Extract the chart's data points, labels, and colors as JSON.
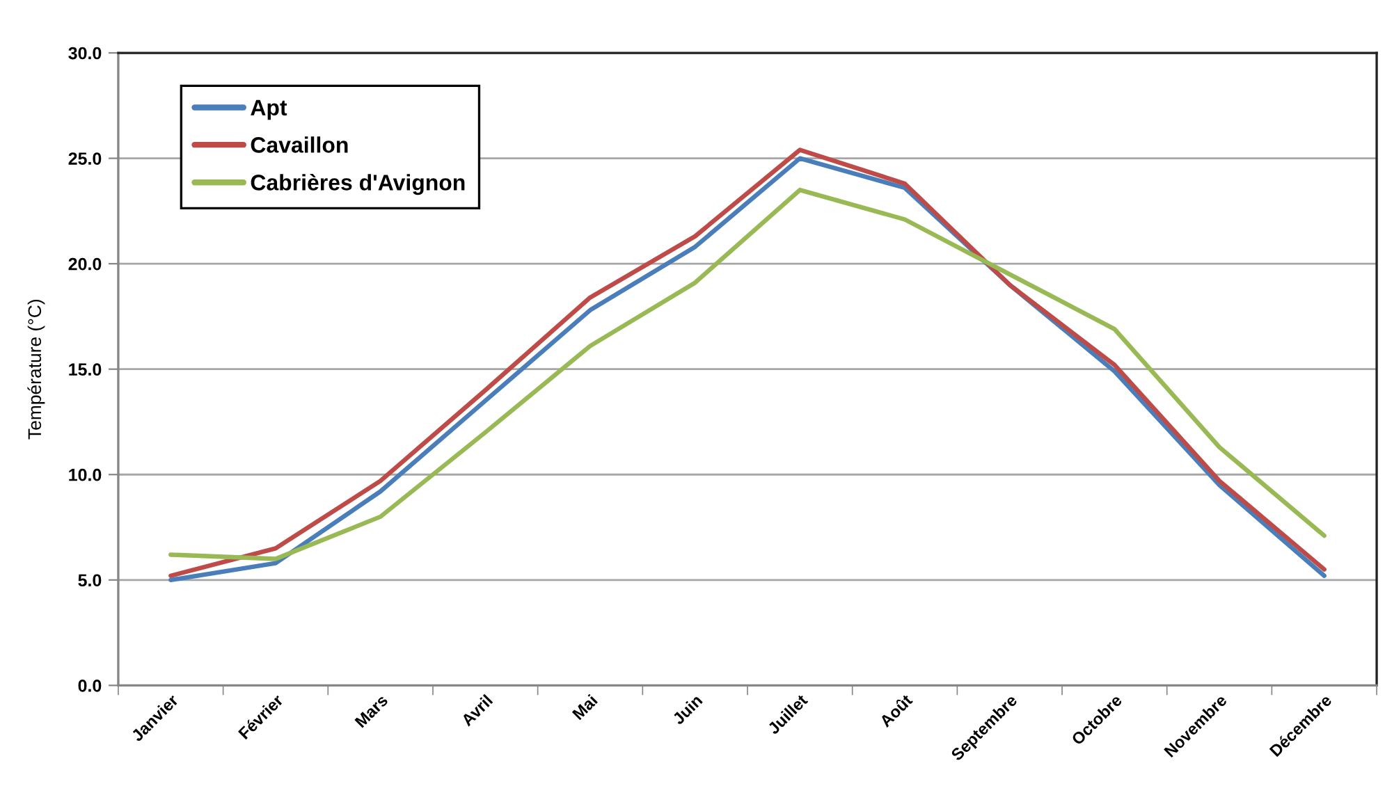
{
  "chart_data": {
    "type": "line",
    "ylabel": "Température (°C)",
    "categories": [
      "Janvier",
      "Février",
      "Mars",
      "Avril",
      "Mai",
      "Juin",
      "Juillet",
      "Août",
      "Septembre",
      "Octobre",
      "Novembre",
      "Décembre"
    ],
    "series": [
      {
        "name": "Apt",
        "color": "#4a7ebb",
        "values": [
          5.0,
          5.8,
          9.2,
          13.5,
          17.8,
          20.8,
          25.0,
          23.6,
          19.0,
          14.9,
          9.5,
          5.2
        ]
      },
      {
        "name": "Cavaillon",
        "color": "#be4b48",
        "values": [
          5.2,
          6.5,
          9.7,
          14.0,
          18.4,
          21.3,
          25.4,
          23.8,
          19.0,
          15.2,
          9.7,
          5.5
        ]
      },
      {
        "name": "Cabrières d'Avignon",
        "color": "#98b954",
        "values": [
          6.2,
          6.0,
          8.0,
          12.0,
          16.1,
          19.1,
          23.5,
          22.1,
          19.5,
          16.9,
          11.3,
          7.1
        ]
      }
    ],
    "ylim": [
      0,
      30
    ],
    "yticks": [
      {
        "value": 0,
        "label": "0.0"
      },
      {
        "value": 5,
        "label": "5.0"
      },
      {
        "value": 10,
        "label": "10.0"
      },
      {
        "value": 15,
        "label": "15.0"
      },
      {
        "value": 20,
        "label": "20.0"
      },
      {
        "value": 25,
        "label": "25.0"
      },
      {
        "value": 30,
        "label": "30.0"
      }
    ],
    "grid": "y",
    "legend": "top left",
    "line_style": "solid"
  }
}
